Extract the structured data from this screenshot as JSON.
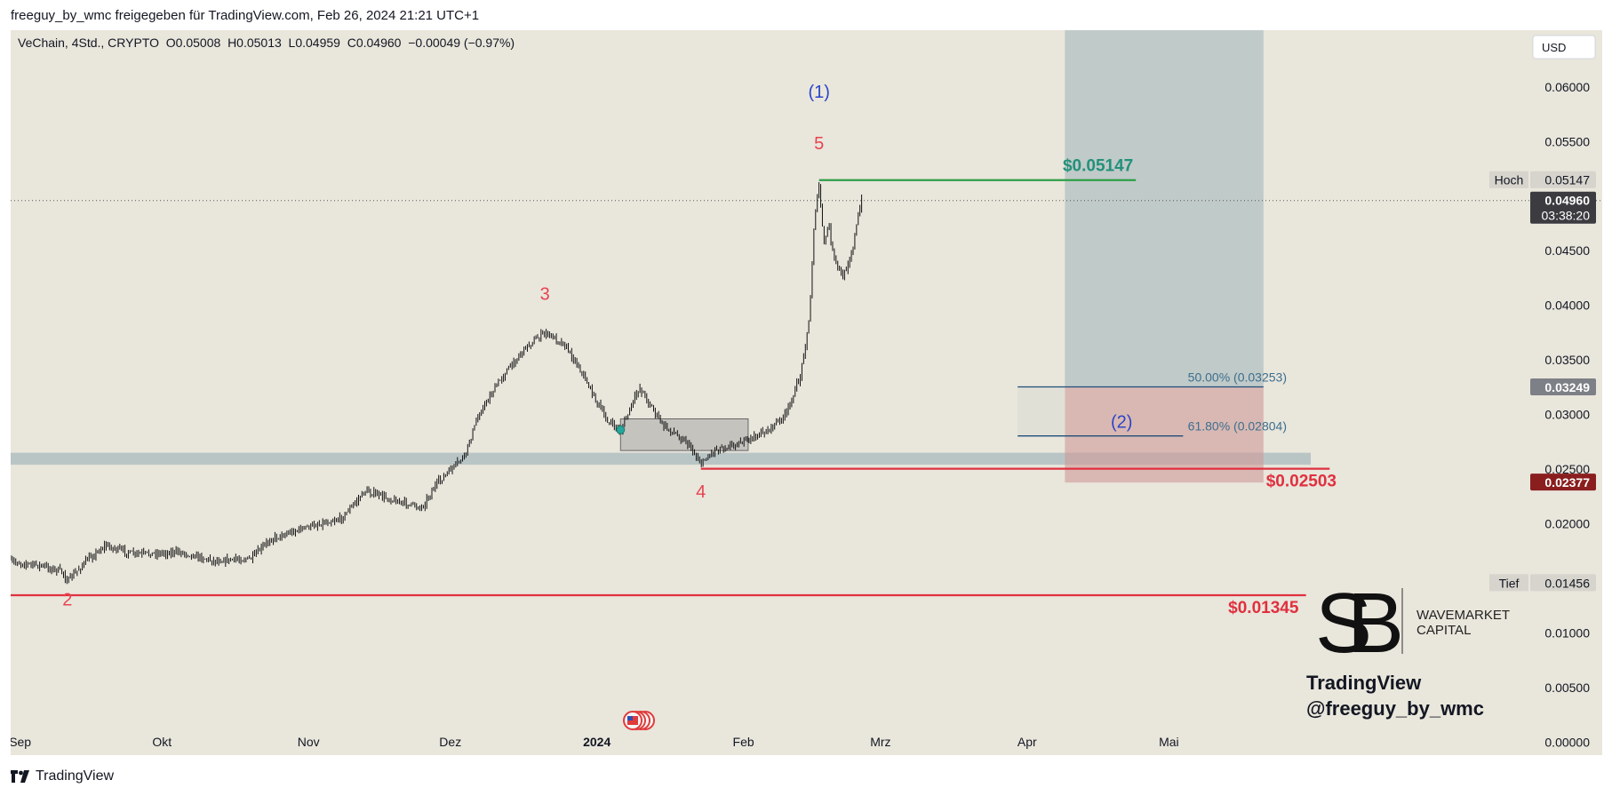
{
  "header": {
    "published_by": "freeguy_by_wmc freigegeben für TradingView.com, Feb 26, 2024 21:21 UTC+1"
  },
  "footer": {
    "brand": "TradingView"
  },
  "colors": {
    "background": "#e9e6dc",
    "candle": "#111111",
    "green_line": "#2e9e47",
    "red_line": "#e0303f",
    "wave_red": "#e8434f",
    "wave_blue": "#2b45c8",
    "target_label": "#22917a",
    "zone_blue": "#9fb3b8",
    "zone_red": "#cf9a98",
    "fib_line": "#1f4e79",
    "fib_text": "#3d6f8e"
  },
  "chart_data": {
    "type": "candlestick",
    "symbol_line": "VeChain, 4Std., CRYPTO  O0.05008  H0.05013  L0.04959  C0.04960  −0.00049 (−0.97%)",
    "currency_button": "USD",
    "y_axis": {
      "ylim": [
        -0.0012,
        0.0652
      ],
      "ticks": [
        "0.06000",
        "0.05500",
        "0.04500",
        "0.04000",
        "0.03500",
        "0.03000",
        "0.02500",
        "0.02000",
        "0.01000",
        "0.00500",
        "0.00000"
      ]
    },
    "x_axis": {
      "range": [
        "2023-08-30",
        "2024-05-31"
      ],
      "ticks": [
        {
          "label": "Sep",
          "date": "2023-09-01"
        },
        {
          "label": "Okt",
          "date": "2023-10-01"
        },
        {
          "label": "Nov",
          "date": "2023-11-01"
        },
        {
          "label": "Dez",
          "date": "2023-12-01"
        },
        {
          "label": "2024",
          "date": "2024-01-01",
          "bold": true
        },
        {
          "label": "Feb",
          "date": "2024-02-01"
        },
        {
          "label": "Mrz",
          "date": "2024-03-01"
        },
        {
          "label": "Apr",
          "date": "2024-04-01"
        },
        {
          "label": "Mai",
          "date": "2024-05-01"
        }
      ]
    },
    "price_path": [
      {
        "date": "2023-08-30",
        "price": 0.0165
      },
      {
        "date": "2023-09-05",
        "price": 0.0162
      },
      {
        "date": "2023-09-10",
        "price": 0.0156
      },
      {
        "date": "2023-09-11",
        "price": 0.0147
      },
      {
        "date": "2023-09-15",
        "price": 0.0166
      },
      {
        "date": "2023-09-19",
        "price": 0.018
      },
      {
        "date": "2023-09-25",
        "price": 0.0172
      },
      {
        "date": "2023-10-05",
        "price": 0.0174
      },
      {
        "date": "2023-10-12",
        "price": 0.0166
      },
      {
        "date": "2023-10-20",
        "price": 0.0168
      },
      {
        "date": "2023-10-24",
        "price": 0.0186
      },
      {
        "date": "2023-10-31",
        "price": 0.0196
      },
      {
        "date": "2023-11-08",
        "price": 0.0205
      },
      {
        "date": "2023-11-13",
        "price": 0.023
      },
      {
        "date": "2023-11-20",
        "price": 0.022
      },
      {
        "date": "2023-11-25",
        "price": 0.0215
      },
      {
        "date": "2023-11-28",
        "price": 0.0236
      },
      {
        "date": "2023-12-04",
        "price": 0.0262
      },
      {
        "date": "2023-12-07",
        "price": 0.03
      },
      {
        "date": "2023-12-12",
        "price": 0.0335
      },
      {
        "date": "2023-12-17",
        "price": 0.0362
      },
      {
        "date": "2023-12-21",
        "price": 0.0375
      },
      {
        "date": "2023-12-25",
        "price": 0.0365
      },
      {
        "date": "2023-12-28",
        "price": 0.0345
      },
      {
        "date": "2024-01-03",
        "price": 0.0295
      },
      {
        "date": "2024-01-06",
        "price": 0.0285
      },
      {
        "date": "2024-01-10",
        "price": 0.0325
      },
      {
        "date": "2024-01-15",
        "price": 0.029
      },
      {
        "date": "2024-01-20",
        "price": 0.0275
      },
      {
        "date": "2024-01-23",
        "price": 0.0255
      },
      {
        "date": "2024-01-26",
        "price": 0.0268
      },
      {
        "date": "2024-02-01",
        "price": 0.0275
      },
      {
        "date": "2024-02-06",
        "price": 0.0285
      },
      {
        "date": "2024-02-10",
        "price": 0.03
      },
      {
        "date": "2024-02-13",
        "price": 0.0335
      },
      {
        "date": "2024-02-15",
        "price": 0.039
      },
      {
        "date": "2024-02-16",
        "price": 0.048
      },
      {
        "date": "2024-02-17",
        "price": 0.051
      },
      {
        "date": "2024-02-18",
        "price": 0.0455
      },
      {
        "date": "2024-02-19",
        "price": 0.0475
      },
      {
        "date": "2024-02-20",
        "price": 0.0445
      },
      {
        "date": "2024-02-22",
        "price": 0.0425
      },
      {
        "date": "2024-02-24",
        "price": 0.045
      },
      {
        "date": "2024-02-25",
        "price": 0.0475
      },
      {
        "date": "2024-02-26",
        "price": 0.0496
      }
    ],
    "waves": [
      {
        "label": "2",
        "date": "2023-09-11",
        "price": 0.0125,
        "color": "red"
      },
      {
        "label": "3",
        "date": "2023-12-21",
        "price": 0.0405,
        "color": "red"
      },
      {
        "label": "4",
        "date": "2024-01-23",
        "price": 0.0224,
        "color": "red"
      },
      {
        "label": "5",
        "date": "2024-02-17",
        "price": 0.0543,
        "color": "red"
      },
      {
        "label": "(1)",
        "date": "2024-02-17",
        "price": 0.059,
        "color": "blue"
      },
      {
        "label": "(2)",
        "date": "2024-04-21",
        "price": 0.0288,
        "color": "blue"
      }
    ],
    "levels": [
      {
        "label": "$0.05147",
        "price": 0.05147,
        "from": "2024-02-17",
        "to": "2024-04-24",
        "color": "green",
        "label_date": "2024-04-16"
      },
      {
        "label": "$0.02503",
        "price": 0.02503,
        "from": "2024-01-23",
        "to": "2024-06-04",
        "color": "red",
        "label_date": "2024-05-29"
      },
      {
        "label": "$0.01345",
        "price": 0.01345,
        "from": "2023-08-30",
        "to": "2024-05-30",
        "color": "red",
        "label_date": "2024-05-21"
      }
    ],
    "fib_levels": [
      {
        "label": "50.00% (0.03253)",
        "price": 0.03253,
        "from": "2024-03-30",
        "to": "2024-05-21"
      },
      {
        "label": "61.80% (0.02804)",
        "price": 0.02804,
        "from": "2024-03-30",
        "to": "2024-05-04"
      }
    ],
    "zones": [
      {
        "kind": "support",
        "from": "2023-08-30",
        "to": "2024-05-31",
        "top": 0.0265,
        "bottom": 0.0254
      },
      {
        "kind": "profit",
        "from": "2024-04-09",
        "to": "2024-05-21",
        "top": 0.0652,
        "bottom": 0.03253
      },
      {
        "kind": "loss",
        "from": "2024-04-09",
        "to": "2024-05-21",
        "top": 0.03253,
        "bottom": 0.02377
      },
      {
        "kind": "fib",
        "from": "2024-03-30",
        "to": "2024-04-09",
        "top": 0.03253,
        "bottom": 0.02804
      },
      {
        "kind": "consolidation",
        "from": "2024-01-06",
        "to": "2024-02-02",
        "top": 0.0296,
        "bottom": 0.0267
      }
    ],
    "marker": {
      "date": "2024-01-06",
      "price": 0.0286
    },
    "price_tags": [
      {
        "label": "Hoch",
        "value": "0.05147",
        "price": 0.05147,
        "style": "light"
      },
      {
        "value": "0.04960",
        "sub": "03:38:20",
        "price": 0.0496,
        "style": "dark"
      },
      {
        "value": "0.03249",
        "price": 0.03249,
        "style": "grey"
      },
      {
        "value": "0.02377",
        "price": 0.02377,
        "style": "red"
      },
      {
        "label": "Tief",
        "value": "0.01456",
        "price": 0.01456,
        "style": "light"
      }
    ],
    "current_price": 0.0496
  },
  "watermark": {
    "monogram": "SB",
    "name_line1": "WAVEMARKET",
    "name_line2": "CAPITAL",
    "line1": "TradingView",
    "line2": "@freeguy_by_wmc"
  }
}
